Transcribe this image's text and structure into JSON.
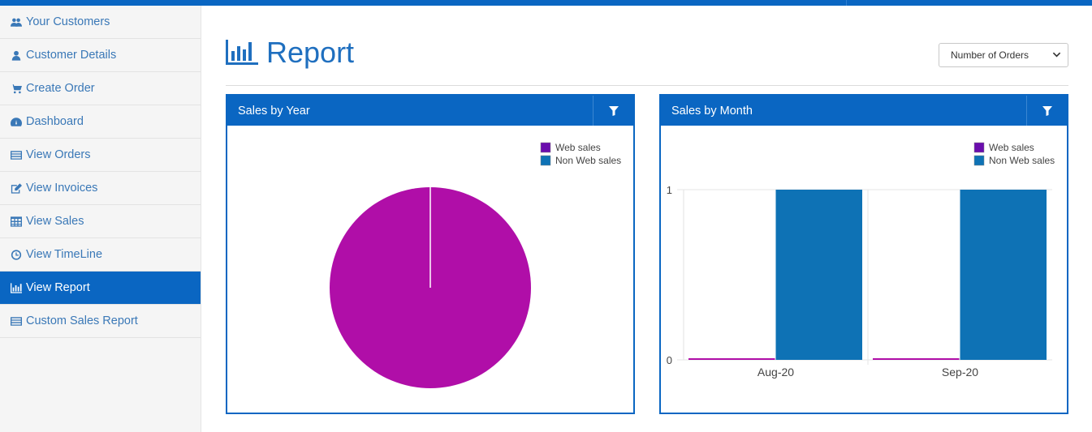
{
  "sidebar": {
    "items": [
      {
        "label": "Your Customers",
        "icon": "users-icon",
        "active": false
      },
      {
        "label": "Customer Details",
        "icon": "user-icon",
        "active": false
      },
      {
        "label": "Create Order",
        "icon": "cart-icon",
        "active": false
      },
      {
        "label": "Dashboard",
        "icon": "dashboard-icon",
        "active": false
      },
      {
        "label": "View Orders",
        "icon": "list-icon",
        "active": false
      },
      {
        "label": "View Invoices",
        "icon": "edit-icon",
        "active": false
      },
      {
        "label": "View Sales",
        "icon": "table-icon",
        "active": false
      },
      {
        "label": "View TimeLine",
        "icon": "clock-icon",
        "active": false
      },
      {
        "label": "View Report",
        "icon": "bar-chart-icon",
        "active": true
      },
      {
        "label": "Custom Sales Report",
        "icon": "list-icon",
        "active": false
      }
    ]
  },
  "header": {
    "title": "Report",
    "title_icon": "bar-chart-icon",
    "metric_select": "Number of Orders"
  },
  "colors": {
    "brand": "#0a66c2",
    "web_sales": "#b00ea8",
    "web_sales_legend": "#6a0dad",
    "non_web_sales": "#0e72b5"
  },
  "panels": {
    "year": {
      "title": "Sales by Year",
      "filter_icon": "filter-icon"
    },
    "month": {
      "title": "Sales by Month",
      "filter_icon": "filter-icon"
    }
  },
  "chart_data": [
    {
      "type": "pie",
      "title": "Sales by Year",
      "legend": [
        "Web sales",
        "Non Web sales"
      ],
      "legend_position": "top-right",
      "slices": [
        {
          "name": "Web sales",
          "value": 1
        },
        {
          "name": "Non Web sales",
          "value": 0
        }
      ]
    },
    {
      "type": "bar",
      "title": "Sales by Month",
      "categories": [
        "Aug-20",
        "Sep-20"
      ],
      "series": [
        {
          "name": "Web sales",
          "values": [
            0,
            0
          ]
        },
        {
          "name": "Non Web sales",
          "values": [
            1,
            1
          ]
        }
      ],
      "ylim": [
        0,
        1
      ],
      "yticks": [
        "0",
        "1"
      ],
      "legend": [
        "Web sales",
        "Non Web sales"
      ],
      "legend_position": "top-right",
      "grid": true
    }
  ]
}
